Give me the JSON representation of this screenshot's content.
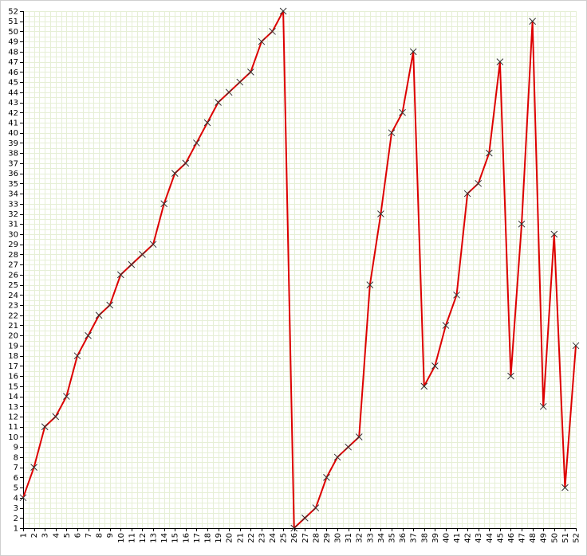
{
  "chart_data": {
    "type": "line",
    "title": "",
    "xlabel": "",
    "ylabel": "",
    "x": [
      1,
      2,
      3,
      4,
      5,
      6,
      7,
      8,
      9,
      10,
      11,
      12,
      13,
      14,
      15,
      16,
      17,
      18,
      19,
      20,
      21,
      22,
      23,
      24,
      25,
      26,
      27,
      28,
      29,
      30,
      31,
      32,
      33,
      34,
      35,
      36,
      37,
      38,
      39,
      40,
      41,
      42,
      43,
      44,
      45,
      46,
      47,
      48,
      49,
      50,
      51,
      52
    ],
    "series": [
      {
        "name": "",
        "values": [
          4,
          7,
          11,
          12,
          14,
          18,
          20,
          22,
          23,
          26,
          27,
          28,
          29,
          33,
          36,
          37,
          39,
          41,
          43,
          44,
          45,
          46,
          49,
          50,
          52,
          1,
          2,
          3,
          6,
          8,
          9,
          10,
          25,
          32,
          40,
          42,
          48,
          15,
          17,
          21,
          24,
          34,
          35,
          38,
          47,
          16,
          31,
          51,
          13,
          30,
          5,
          19
        ]
      }
    ],
    "xlim": [
      1,
      52
    ],
    "ylim": [
      1,
      52
    ],
    "x_ticks": [
      "1",
      "2",
      "3",
      "4",
      "5",
      "6",
      "7",
      "8",
      "9",
      "10",
      "11",
      "12",
      "13",
      "14",
      "15",
      "16",
      "17",
      "18",
      "19",
      "20",
      "21",
      "22",
      "23",
      "24",
      "25",
      "26",
      "27",
      "28",
      "29",
      "30",
      "31",
      "32",
      "33",
      "34",
      "35",
      "36",
      "37",
      "38",
      "39",
      "40",
      "41",
      "42",
      "43",
      "44",
      "45",
      "46",
      "47",
      "48",
      "49",
      "50",
      "51",
      "52"
    ],
    "y_ticks": [
      "1",
      "2",
      "3",
      "4",
      "5",
      "6",
      "7",
      "8",
      "9",
      "10",
      "11",
      "12",
      "13",
      "14",
      "15",
      "16",
      "17",
      "18",
      "19",
      "20",
      "21",
      "22",
      "23",
      "24",
      "25",
      "26",
      "27",
      "28",
      "29",
      "30",
      "31",
      "32",
      "33",
      "34",
      "35",
      "36",
      "37",
      "38",
      "39",
      "40",
      "41",
      "42",
      "43",
      "44",
      "45",
      "46",
      "47",
      "48",
      "49",
      "50",
      "51",
      "52"
    ],
    "grid": true,
    "legend": "none",
    "marker": "x",
    "colors": {
      "line": "#dd0000",
      "marker": "#333333",
      "grid": "#e6efd6",
      "axis": "#000000",
      "background": "#ffffff",
      "border": "#000000"
    }
  }
}
